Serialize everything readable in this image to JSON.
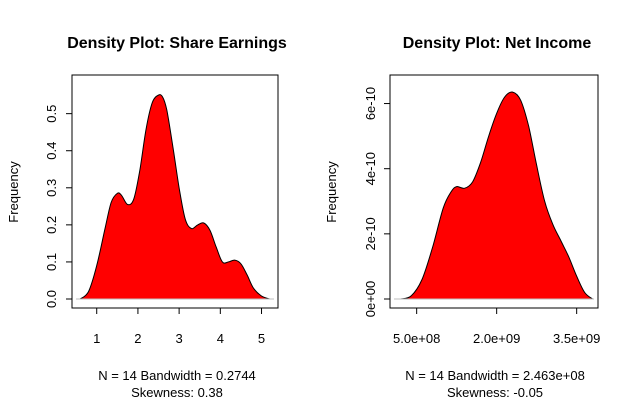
{
  "chart_data": [
    {
      "type": "area",
      "title": "Density Plot: Share Earnings",
      "ylabel": "Frequency",
      "xlabel_lines": [
        "N = 14   Bandwidth = 0.2744",
        "Skewness: 0.38"
      ],
      "xlim": [
        0.4,
        5.4
      ],
      "ylim": [
        0,
        0.58
      ],
      "x_ticks": [
        1,
        2,
        3,
        4,
        5
      ],
      "x_tick_labels": [
        "1",
        "2",
        "3",
        "4",
        "5"
      ],
      "y_ticks": [
        0.0,
        0.1,
        0.2,
        0.3,
        0.4,
        0.5
      ],
      "y_tick_labels": [
        "0.0",
        "0.1",
        "0.2",
        "0.3",
        "0.4",
        "0.5"
      ],
      "fill_color": "#ff0000",
      "x": [
        0.6,
        0.8,
        1.0,
        1.2,
        1.35,
        1.5,
        1.6,
        1.75,
        1.9,
        2.05,
        2.2,
        2.35,
        2.5,
        2.6,
        2.7,
        2.85,
        3.0,
        3.15,
        3.3,
        3.45,
        3.6,
        3.75,
        3.9,
        4.05,
        4.2,
        4.35,
        4.5,
        4.65,
        4.8,
        5.0,
        5.2
      ],
      "y": [
        0.0,
        0.02,
        0.09,
        0.19,
        0.26,
        0.285,
        0.28,
        0.255,
        0.27,
        0.35,
        0.46,
        0.53,
        0.55,
        0.545,
        0.51,
        0.41,
        0.3,
        0.215,
        0.19,
        0.2,
        0.205,
        0.185,
        0.14,
        0.1,
        0.1,
        0.105,
        0.095,
        0.065,
        0.03,
        0.008,
        0.0
      ]
    },
    {
      "type": "area",
      "title": "Density Plot: Net Income",
      "ylabel": "Frequency",
      "xlabel_lines": [
        "N = 14   Bandwidth = 2.463e+08",
        "Skewness: -0.05"
      ],
      "xlim": [
        0,
        3900000000
      ],
      "ylim": [
        0,
        6.6e-10
      ],
      "x_ticks": [
        500000000,
        2000000000,
        3500000000
      ],
      "x_tick_labels": [
        "5.0e+08",
        "2.0e+09",
        "3.5e+09"
      ],
      "y_ticks": [
        0,
        2e-10,
        4e-10,
        6e-10
      ],
      "y_tick_labels": [
        "0e+00",
        "2e-10",
        "4e-10",
        "6e-10"
      ],
      "fill_color": "#ff0000",
      "x": [
        200000000,
        400000000,
        600000000,
        800000000,
        1000000000,
        1150000000,
        1250000000,
        1400000000,
        1550000000,
        1700000000,
        1850000000,
        2000000000,
        2150000000,
        2300000000,
        2450000000,
        2600000000,
        2750000000,
        2900000000,
        3050000000,
        3200000000,
        3350000000,
        3500000000,
        3650000000,
        3800000000
      ],
      "y": [
        0.0,
        1e-11,
        6e-11,
        1.6e-10,
        2.8e-10,
        3.3e-10,
        3.45e-10,
        3.4e-10,
        3.6e-10,
        4.2e-10,
        5e-10,
        5.7e-10,
        6.2e-10,
        6.35e-10,
        6.1e-10,
        5.3e-10,
        4.1e-10,
        3e-10,
        2.3e-10,
        1.8e-10,
        1.3e-10,
        7e-11,
        2e-11,
        0.0
      ]
    }
  ]
}
